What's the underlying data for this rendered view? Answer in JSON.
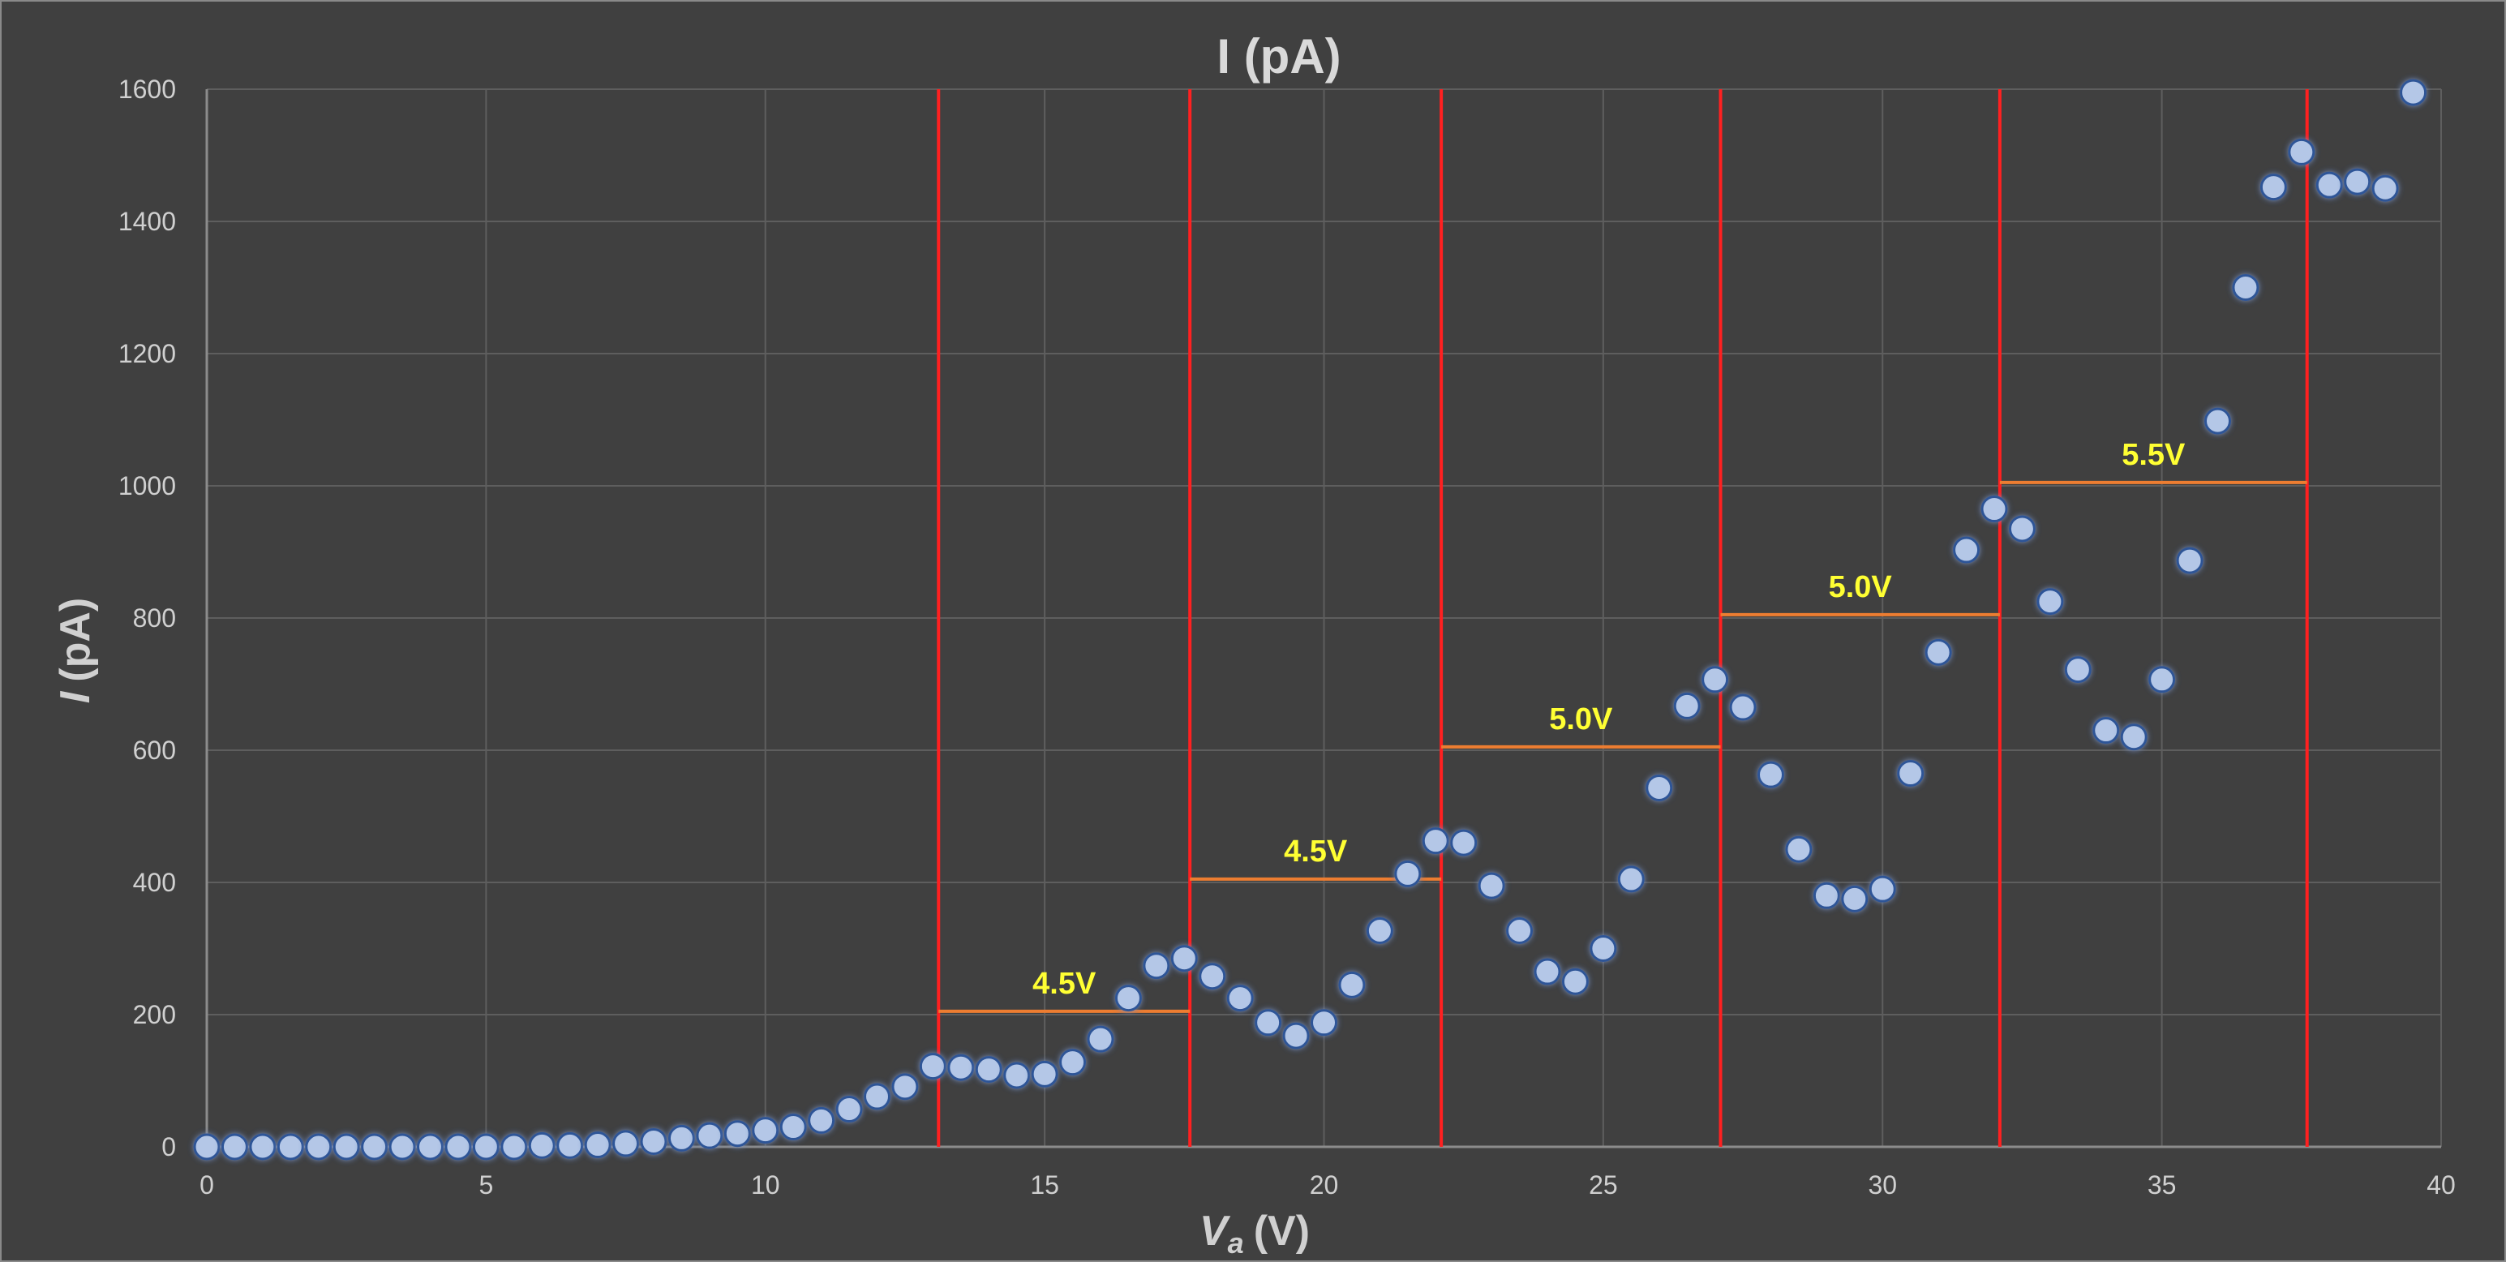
{
  "chart_data": {
    "type": "scatter",
    "title": "I (pA)",
    "xlabel_main": "V",
    "xlabel_sub": "a",
    "xlabel_unit": "(V)",
    "ylabel_main": "I",
    "ylabel_unit": "(pA)",
    "xlim": [
      0,
      40
    ],
    "ylim": [
      0,
      1600
    ],
    "x_ticks": [
      0,
      5,
      10,
      15,
      20,
      25,
      30,
      35,
      40
    ],
    "y_ticks": [
      0,
      200,
      400,
      600,
      800,
      1000,
      1200,
      1400,
      1600
    ],
    "grid": true,
    "colors": {
      "background": "#404040",
      "grid": "#5e5e5e",
      "point": "#b4c7e7",
      "point_glow": "#2f5597",
      "vline": "#ff2020",
      "hline": "#ed7d31",
      "annotation": "#ffff33",
      "text": "#d0d0d0"
    },
    "points": [
      [
        0,
        0
      ],
      [
        0.5,
        0
      ],
      [
        1,
        0
      ],
      [
        1.5,
        0
      ],
      [
        2,
        0
      ],
      [
        2.5,
        0
      ],
      [
        3,
        0
      ],
      [
        3.5,
        0
      ],
      [
        4,
        0
      ],
      [
        4.5,
        0
      ],
      [
        5,
        0
      ],
      [
        5.5,
        0
      ],
      [
        6,
        2
      ],
      [
        6.5,
        2
      ],
      [
        7,
        3
      ],
      [
        7.5,
        5
      ],
      [
        8,
        8
      ],
      [
        8.5,
        13
      ],
      [
        9,
        17
      ],
      [
        9.5,
        20
      ],
      [
        10,
        25
      ],
      [
        10.5,
        30
      ],
      [
        11,
        40
      ],
      [
        11.5,
        57
      ],
      [
        12,
        76
      ],
      [
        12.5,
        91
      ],
      [
        13,
        122
      ],
      [
        13.5,
        120
      ],
      [
        14,
        117
      ],
      [
        14.5,
        108
      ],
      [
        15,
        110
      ],
      [
        15.5,
        128
      ],
      [
        16,
        163
      ],
      [
        16.5,
        225
      ],
      [
        17,
        274
      ],
      [
        17.5,
        285
      ],
      [
        18,
        258
      ],
      [
        18.5,
        225
      ],
      [
        19,
        188
      ],
      [
        19.5,
        168
      ],
      [
        20,
        188
      ],
      [
        20.5,
        245
      ],
      [
        21,
        327
      ],
      [
        21.5,
        413
      ],
      [
        22,
        463
      ],
      [
        22.5,
        460
      ],
      [
        23,
        395
      ],
      [
        23.5,
        327
      ],
      [
        24,
        265
      ],
      [
        24.5,
        250
      ],
      [
        25,
        300
      ],
      [
        25.5,
        405
      ],
      [
        26,
        543
      ],
      [
        26.5,
        667
      ],
      [
        27,
        707
      ],
      [
        27.5,
        665
      ],
      [
        28,
        563
      ],
      [
        28.5,
        450
      ],
      [
        29,
        380
      ],
      [
        29.5,
        375
      ],
      [
        30,
        390
      ],
      [
        30.5,
        565
      ],
      [
        31,
        748
      ],
      [
        31.5,
        903
      ],
      [
        32,
        965
      ],
      [
        32.5,
        935
      ],
      [
        33,
        825
      ],
      [
        33.5,
        722
      ],
      [
        34,
        630
      ],
      [
        34.5,
        620
      ],
      [
        35,
        707
      ],
      [
        35.5,
        887
      ],
      [
        36,
        1098
      ],
      [
        36.5,
        1300
      ],
      [
        37,
        1452
      ],
      [
        37.5,
        1505
      ],
      [
        38,
        1455
      ],
      [
        38.5,
        1460
      ],
      [
        39,
        1450
      ],
      [
        39.5,
        1595
      ]
    ],
    "vertical_markers": [
      13.1,
      17.6,
      22.1,
      27.1,
      32.1,
      37.6
    ],
    "step_segments": [
      {
        "x1": 13.1,
        "x2": 17.6,
        "y": 205,
        "label": "4.5V"
      },
      {
        "x1": 17.6,
        "x2": 22.1,
        "y": 405,
        "label": "4.5V"
      },
      {
        "x1": 22.1,
        "x2": 27.1,
        "y": 605,
        "label": "5.0V"
      },
      {
        "x1": 27.1,
        "x2": 32.1,
        "y": 805,
        "label": "5.0V"
      },
      {
        "x1": 32.1,
        "x2": 37.6,
        "y": 1005,
        "label": "5.5V"
      }
    ]
  }
}
